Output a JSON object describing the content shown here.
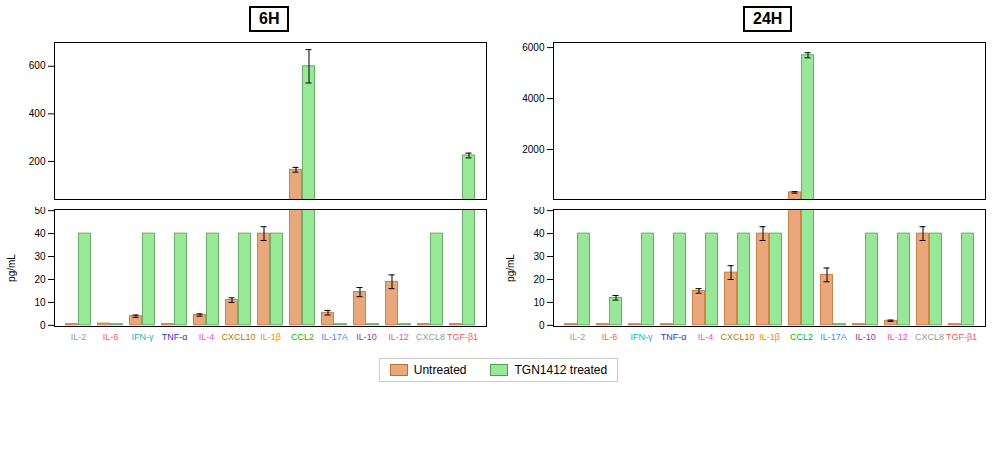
{
  "chart_data": [
    {
      "type": "bar",
      "title": "6H",
      "ylabel": "pg/mL",
      "categories": [
        "IL-2",
        "IL-6",
        "IFN-γ",
        "TNF-α",
        "IL-4",
        "CXCL10",
        "IL-1β",
        "CCL2",
        "IL-17A",
        "IL-10",
        "IL-12",
        "CXCL8",
        "TGF-β1"
      ],
      "category_colors": [
        "#999999",
        "#ff5555",
        "#00bbbb",
        "#3333cc",
        "#ee44ee",
        "#bb7700",
        "#ff8800",
        "#00bb00",
        "#4488ff",
        "#9933aa",
        "#ff44aa",
        "#999999",
        "#ff5555"
      ],
      "series": [
        {
          "name": "Untreated",
          "color": "#e8a87c",
          "edge_color": "#c07030",
          "values": [
            0.5,
            0.8,
            4.0,
            0.5,
            4.5,
            11.0,
            40.0,
            165.0,
            5.5,
            14.5,
            19.0,
            0.5,
            0.5
          ],
          "errors": [
            0,
            0,
            0.5,
            0,
            0.5,
            1.0,
            3.0,
            10.0,
            1.0,
            2.0,
            3.0,
            0,
            0
          ]
        },
        {
          "name": "TGN1412 treated",
          "color": "#98e898",
          "edge_color": "#50a050",
          "values": [
            40.0,
            0.5,
            40.0,
            40.0,
            40.0,
            40.0,
            40.0,
            600.0,
            0.5,
            0.5,
            0.5,
            40.0,
            225.0
          ],
          "errors": [
            0,
            0,
            0,
            0,
            0,
            0,
            0,
            70.0,
            0,
            0,
            0,
            0,
            10.0
          ]
        }
      ],
      "y_segments": [
        {
          "ylim": [
            -0.5,
            50.5
          ],
          "yticks": [
            0,
            10,
            20,
            30,
            40,
            50
          ]
        },
        {
          "ylim": [
            40,
            700
          ],
          "yticks": [
            200,
            400,
            600
          ]
        }
      ],
      "legend": "bottom"
    },
    {
      "type": "bar",
      "title": "24H",
      "ylabel": "pg/mL",
      "categories": [
        "IL-2",
        "IL-6",
        "IFN-γ",
        "TNF-α",
        "IL-4",
        "CXCL10",
        "IL-1β",
        "CCL2",
        "IL-17A",
        "IL-10",
        "IL-12",
        "CXCL8",
        "TGF-β1"
      ],
      "category_colors": [
        "#999999",
        "#ff5555",
        "#00bbbb",
        "#3333cc",
        "#ee44ee",
        "#bb7700",
        "#ff8800",
        "#00bb00",
        "#4488ff",
        "#9933aa",
        "#ff44aa",
        "#999999",
        "#ff5555"
      ],
      "series": [
        {
          "name": "Untreated",
          "color": "#e8a87c",
          "edge_color": "#c07030",
          "values": [
            0.5,
            0.5,
            0.5,
            0.5,
            15.0,
            23.0,
            40.0,
            320.0,
            22.0,
            0.5,
            2.0,
            40.0,
            0.5
          ],
          "errors": [
            0,
            0,
            0,
            0,
            1.0,
            3.0,
            3.0,
            30.0,
            3.0,
            0,
            0.3,
            3.0,
            0
          ]
        },
        {
          "name": "TGN1412 treated",
          "color": "#98e898",
          "edge_color": "#50a050",
          "values": [
            40.0,
            12.0,
            40.0,
            40.0,
            40.0,
            40.0,
            40.0,
            5700.0,
            0.5,
            40.0,
            40.0,
            40.0,
            40.0
          ],
          "errors": [
            0,
            1.0,
            0,
            0,
            0,
            0,
            0,
            100.0,
            0,
            0,
            0,
            0,
            0
          ]
        }
      ],
      "y_segments": [
        {
          "ylim": [
            -0.5,
            50.5
          ],
          "yticks": [
            0,
            10,
            20,
            30,
            40,
            50
          ]
        },
        {
          "ylim": [
            40,
            6200
          ],
          "yticks": [
            2000,
            4000,
            6000
          ]
        }
      ],
      "legend": "bottom"
    }
  ]
}
